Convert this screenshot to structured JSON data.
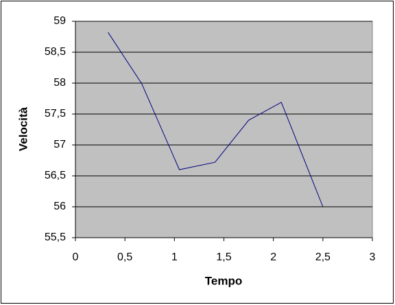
{
  "chart_data": {
    "type": "line",
    "x_label": "Tempo",
    "y_label": "Velocità",
    "x": [
      0.33,
      0.67,
      1.05,
      1.41,
      1.75,
      2.08,
      2.5
    ],
    "values": [
      58.82,
      57.99,
      56.6,
      56.72,
      57.4,
      57.69,
      56.0
    ],
    "color": "#000080",
    "xlim": [
      0,
      3
    ],
    "xticks": [
      0,
      {
        "value": 0.5,
        "label": "0,5"
      },
      1,
      {
        "value": 1.5,
        "label": "1,5"
      },
      2,
      {
        "value": 2.5,
        "label": "2,5"
      },
      3
    ],
    "ylim": [
      55.5,
      59
    ],
    "yticks": [
      {
        "value": 55.5,
        "label": "55,5"
      },
      56,
      {
        "value": 56.5,
        "label": "56,5"
      },
      57,
      {
        "value": 57.5,
        "label": "57,5"
      },
      58,
      {
        "value": 58.5,
        "label": "58,5"
      },
      59
    ],
    "grid": true
  }
}
